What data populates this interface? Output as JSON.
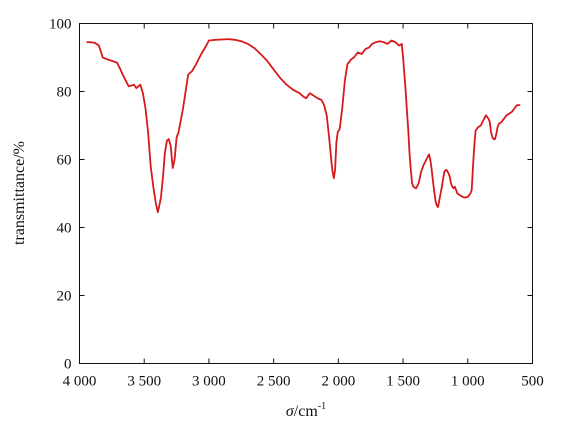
{
  "colors": {
    "series": "#d7191c",
    "axis": "#111111"
  },
  "chart_data": {
    "type": "line",
    "title": "",
    "xlabel_symbol": "σ",
    "xlabel_unit": "/cm",
    "xlabel_exp": "-1",
    "ylabel": "transmittance/%",
    "xlim": [
      4000,
      500
    ],
    "ylim": [
      0,
      100
    ],
    "x_ticks": [
      4000,
      3500,
      3000,
      2500,
      2000,
      1500,
      1000,
      500
    ],
    "x_tick_labels": [
      "4 000",
      "3 500",
      "3 000",
      "2 500",
      "2 000",
      "1 500",
      "1 000",
      "500"
    ],
    "y_ticks": [
      0,
      20,
      40,
      60,
      80,
      100
    ],
    "y_tick_labels": [
      "0",
      "20",
      "40",
      "60",
      "80",
      "100"
    ],
    "grid": false,
    "legend": "none",
    "series": [
      {
        "x": [
          3940,
          3920,
          3880,
          3850,
          3820,
          3790,
          3750,
          3710,
          3690,
          3660,
          3620,
          3580,
          3560,
          3530,
          3510,
          3490,
          3470,
          3450,
          3430,
          3410,
          3395,
          3380,
          3370,
          3355,
          3340,
          3325,
          3310,
          3295,
          3280,
          3265,
          3250,
          3235,
          3220,
          3200,
          3180,
          3160,
          3130,
          3100,
          3060,
          3020,
          3000,
          2950,
          2900,
          2850,
          2800,
          2750,
          2700,
          2650,
          2600,
          2550,
          2500,
          2450,
          2400,
          2350,
          2300,
          2270,
          2250,
          2220,
          2200,
          2180,
          2160,
          2130,
          2110,
          2090,
          2070,
          2055,
          2045,
          2035,
          2025,
          2015,
          2005,
          1990,
          1970,
          1950,
          1930,
          1900,
          1880,
          1850,
          1820,
          1790,
          1760,
          1740,
          1710,
          1680,
          1650,
          1620,
          1590,
          1560,
          1530,
          1510,
          1500,
          1490,
          1480,
          1470,
          1460,
          1450,
          1440,
          1430,
          1420,
          1400,
          1380,
          1360,
          1340,
          1320,
          1300,
          1290,
          1280,
          1270,
          1260,
          1250,
          1240,
          1230,
          1220,
          1210,
          1200,
          1190,
          1180,
          1165,
          1150,
          1140,
          1130,
          1120,
          1110,
          1100,
          1090,
          1080,
          1060,
          1040,
          1020,
          1000,
          990,
          980,
          970,
          960,
          950,
          940,
          920,
          900,
          880,
          860,
          840,
          830,
          820,
          810,
          800,
          790,
          780,
          770,
          760,
          740,
          720,
          700,
          680,
          660,
          640,
          620,
          600
        ],
        "y": [
          94.5,
          94.5,
          94.3,
          93.5,
          90.0,
          89.5,
          89.0,
          88.5,
          87.0,
          84.5,
          81.5,
          82.0,
          81.0,
          82.0,
          79.5,
          75.0,
          68.0,
          58.0,
          52.0,
          47.0,
          44.5,
          47.0,
          49.0,
          55.0,
          62.0,
          65.5,
          66.0,
          64.0,
          57.5,
          60.0,
          66.5,
          68.0,
          71.0,
          75.0,
          80.0,
          85.0,
          86.0,
          88.0,
          91.0,
          93.5,
          95.0,
          95.2,
          95.3,
          95.4,
          95.2,
          94.8,
          94.0,
          92.8,
          91.0,
          89.0,
          86.5,
          84.0,
          82.0,
          80.5,
          79.5,
          78.5,
          78.0,
          79.5,
          79.0,
          78.5,
          78.0,
          77.5,
          76.0,
          73.0,
          66.0,
          60.0,
          56.5,
          54.5,
          57.0,
          65.0,
          68.0,
          69.0,
          75.0,
          83.0,
          88.0,
          89.5,
          90.0,
          91.5,
          91.0,
          92.5,
          93.0,
          94.0,
          94.5,
          94.8,
          94.5,
          94.0,
          95.0,
          94.5,
          93.5,
          94.0,
          90.0,
          85.0,
          80.0,
          74.0,
          69.0,
          62.0,
          57.0,
          53.0,
          52.0,
          51.5,
          53.0,
          56.5,
          58.5,
          60.0,
          61.5,
          60.0,
          57.5,
          54.0,
          51.0,
          48.0,
          46.5,
          46.0,
          48.0,
          50.0,
          52.0,
          54.5,
          56.5,
          57.0,
          56.0,
          55.0,
          53.0,
          52.0,
          51.5,
          52.0,
          51.0,
          50.0,
          49.5,
          49.0,
          48.8,
          49.0,
          49.5,
          50.0,
          51.0,
          58.0,
          64.0,
          68.5,
          69.5,
          70.0,
          71.5,
          73.0,
          72.0,
          71.0,
          68.0,
          66.5,
          66.0,
          66.0,
          67.5,
          69.5,
          70.5,
          71.0,
          72.0,
          73.0,
          73.5,
          74.0,
          75.0,
          76.0,
          76.0
        ]
      }
    ]
  }
}
